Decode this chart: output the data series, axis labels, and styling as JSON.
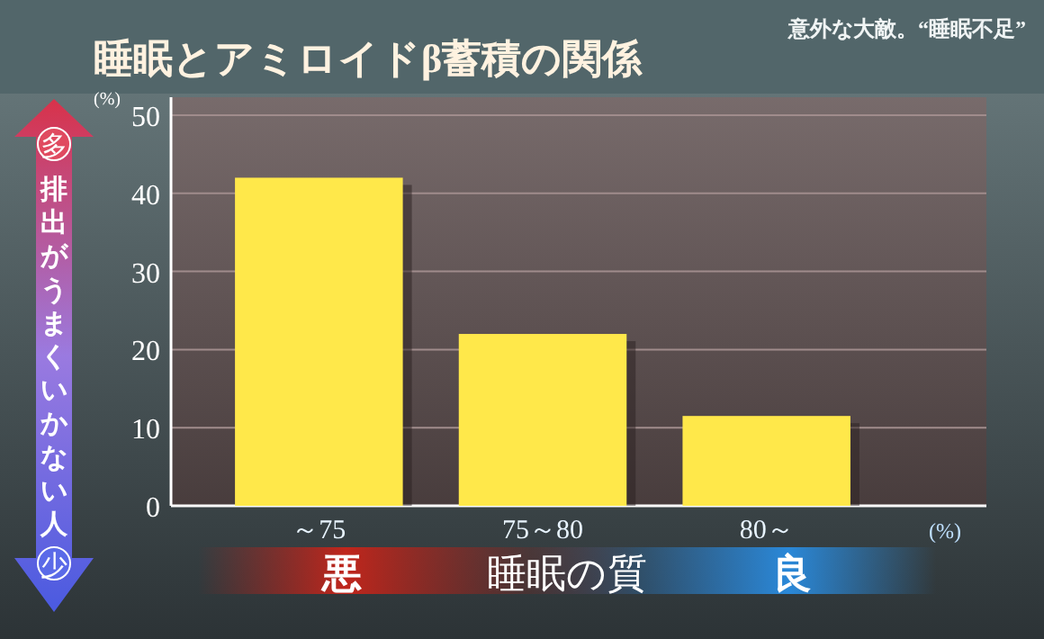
{
  "chart_data": {
    "type": "bar",
    "title": "睡眠とアミロイドβ蓄積の関係",
    "subtitle": "意外な大敵。“睡眠不足”",
    "categories": [
      "～75",
      "75～80",
      "80～"
    ],
    "values": [
      42,
      22,
      11.5
    ],
    "color": "#ffe84a",
    "ylabel": "排出がうまくいかない人",
    "xlabel": "睡眠の質",
    "ylim": [
      0,
      50
    ],
    "yticks": [
      0,
      10,
      20,
      30,
      40,
      50
    ],
    "grid": "y",
    "annotations": [
      "(%)",
      "(%)",
      "多",
      "少",
      "悪",
      "良"
    ]
  }
}
